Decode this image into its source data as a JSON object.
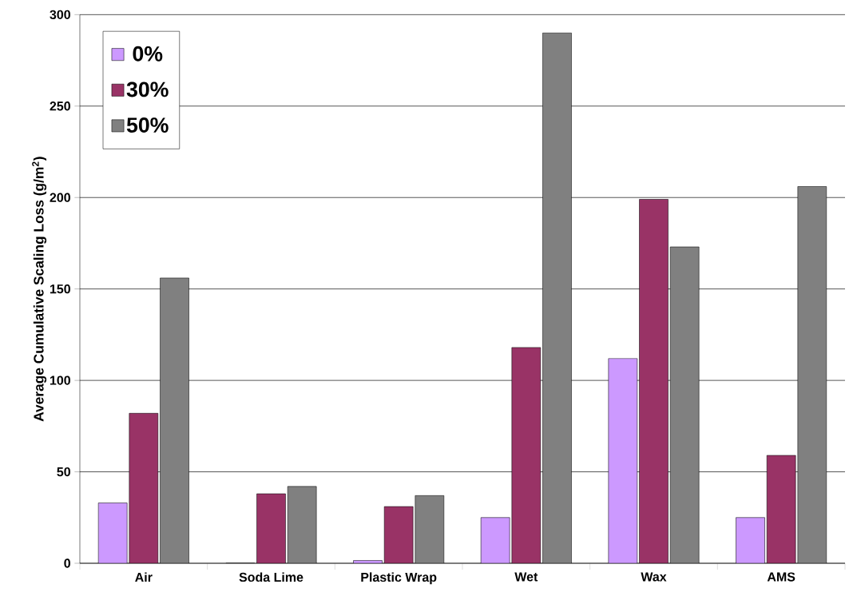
{
  "chart_data": {
    "type": "bar",
    "ylabel": "Average Cumulative Scaling Loss (g/m$^{2}$)",
    "categories": [
      "Air",
      "Soda Lime",
      "Plastic Wrap",
      "Wet",
      "Wax",
      "AMS"
    ],
    "series": [
      {
        "name": "0%",
        "color": "#cc99ff",
        "values": [
          33,
          0,
          1.5,
          25,
          112,
          25
        ]
      },
      {
        "name": "30%",
        "color": "#993366",
        "values": [
          82,
          38,
          31,
          118,
          199,
          59
        ]
      },
      {
        "name": "50%",
        "color": "#808080",
        "values": [
          156,
          42,
          37,
          290,
          173,
          206
        ]
      }
    ],
    "ylim": [
      0,
      300
    ],
    "yticks": [
      0,
      50,
      100,
      150,
      200,
      250,
      300
    ],
    "grid": "y",
    "legend": "top left"
  }
}
